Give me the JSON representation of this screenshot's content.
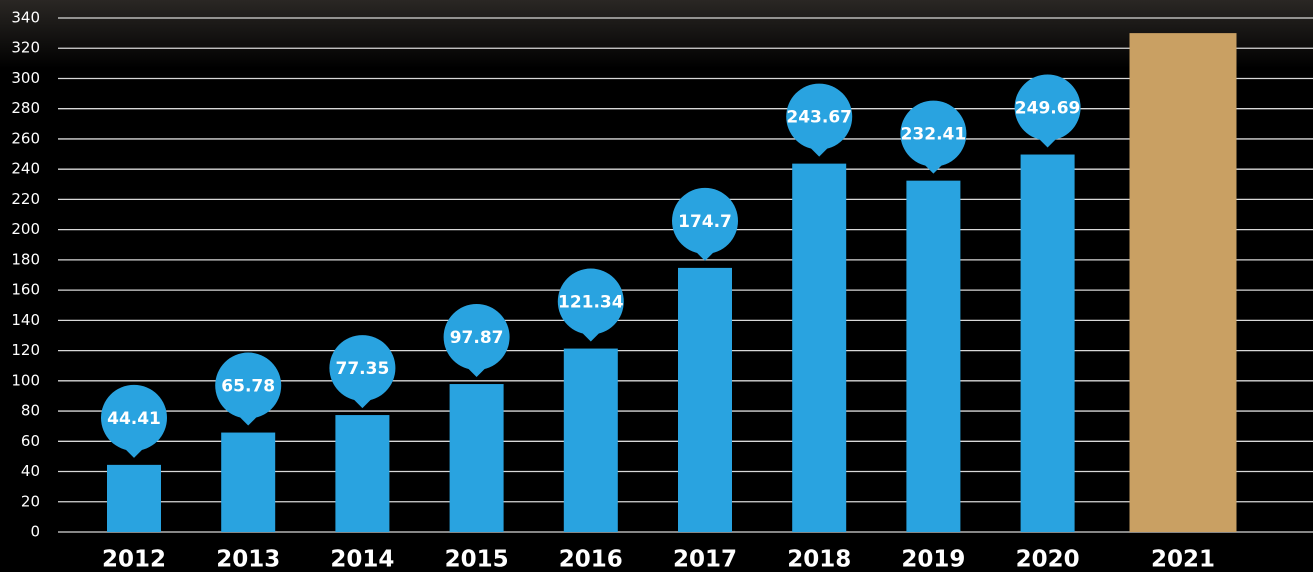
{
  "chart_data": {
    "type": "bar",
    "categories": [
      "2012",
      "2013",
      "2014",
      "2015",
      "2016",
      "2017",
      "2018",
      "2019",
      "2020",
      "2021"
    ],
    "values": [
      44.41,
      65.78,
      77.35,
      97.87,
      121.34,
      174.7,
      243.67,
      232.41,
      249.69,
      330
    ],
    "value_labels": [
      "44.41",
      "65.78",
      "77.35",
      "97.87",
      "121.34",
      "174.7",
      "243.67",
      "232.41",
      "249.69",
      null
    ],
    "colors": [
      "#29a3e0",
      "#29a3e0",
      "#29a3e0",
      "#29a3e0",
      "#29a3e0",
      "#29a3e0",
      "#29a3e0",
      "#29a3e0",
      "#29a3e0",
      "#c9a063"
    ],
    "label_color": "#29a3e0",
    "ylim": [
      0,
      340
    ],
    "yticks": [
      0,
      20,
      40,
      60,
      80,
      100,
      120,
      140,
      160,
      180,
      200,
      220,
      240,
      260,
      280,
      300,
      320,
      340
    ],
    "grid": true
  }
}
